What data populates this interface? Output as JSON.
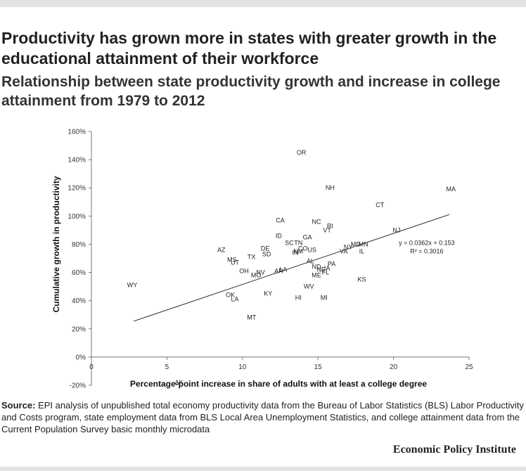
{
  "page": {
    "title": "Productivity has grown more in states with greater growth in the educational attainment of their workforce",
    "subtitle": "Relationship between state productivity growth and increase in college attainment from 1979 to 2012",
    "source_label": "Source:",
    "source_text": "EPI analysis of unpublished total economy productivity data from the Bureau of Labor Statistics (BLS) Labor Productivity and Costs program, state employment data from BLS Local Area Unemployment Statistics, and college attainment data from the Current Population Survey basic monthly microdata",
    "brand": "Economic Policy Institute"
  },
  "chart_data": {
    "type": "scatter",
    "title": "",
    "xlabel": "Percentage-point increase in share of adults with at least a college degree",
    "ylabel": "Cumulative growth in productivity",
    "xlim": [
      0,
      25
    ],
    "ylim": [
      -20,
      160
    ],
    "x_ticks": [
      0,
      5,
      10,
      15,
      20,
      25
    ],
    "x_tick_labels": [
      "0",
      "5",
      "10",
      "15",
      "20",
      "25"
    ],
    "y_ticks": [
      -20,
      0,
      20,
      40,
      60,
      80,
      100,
      120,
      140,
      160
    ],
    "y_tick_labels": [
      "-20%",
      "0%",
      "20%",
      "40%",
      "60%",
      "80%",
      "100%",
      "120%",
      "140%",
      "160%"
    ],
    "trendline": {
      "x_start": 2.8,
      "x_end": 23.7,
      "slope": 0.0362,
      "intercept": 0.153
    },
    "annotation": {
      "equation": "y = 0.0362x + 0.153",
      "r_squared": "R² = 0.3016",
      "x": 22.2,
      "y_equation": 81,
      "y_r2": 75
    },
    "points": [
      {
        "label": "OR",
        "x": 13.9,
        "y": 145
      },
      {
        "label": "MA",
        "x": 23.8,
        "y": 119
      },
      {
        "label": "NH",
        "x": 15.8,
        "y": 120
      },
      {
        "label": "CT",
        "x": 19.1,
        "y": 108
      },
      {
        "label": "CA",
        "x": 12.5,
        "y": 97
      },
      {
        "label": "NC",
        "x": 14.9,
        "y": 96
      },
      {
        "label": "RI",
        "x": 15.8,
        "y": 93
      },
      {
        "label": "VT",
        "x": 15.6,
        "y": 90
      },
      {
        "label": "NJ",
        "x": 20.2,
        "y": 90
      },
      {
        "label": "ID",
        "x": 12.4,
        "y": 86
      },
      {
        "label": "GA",
        "x": 14.3,
        "y": 85
      },
      {
        "label": "SC",
        "x": 13.1,
        "y": 81
      },
      {
        "label": "TN",
        "x": 13.7,
        "y": 81
      },
      {
        "label": "MD",
        "x": 17.5,
        "y": 80
      },
      {
        "label": "MN",
        "x": 18.0,
        "y": 80
      },
      {
        "label": "NY",
        "x": 17.0,
        "y": 78
      },
      {
        "label": "VA",
        "x": 16.7,
        "y": 75
      },
      {
        "label": "IL",
        "x": 17.9,
        "y": 75
      },
      {
        "label": "CO",
        "x": 14.0,
        "y": 77
      },
      {
        "label": "US",
        "x": 14.6,
        "y": 76
      },
      {
        "label": "IN",
        "x": 13.5,
        "y": 74
      },
      {
        "label": "NM",
        "x": 13.7,
        "y": 75
      },
      {
        "label": "AZ",
        "x": 8.6,
        "y": 76
      },
      {
        "label": "DE",
        "x": 11.5,
        "y": 77
      },
      {
        "label": "SD",
        "x": 11.6,
        "y": 73
      },
      {
        "label": "TX",
        "x": 10.6,
        "y": 71
      },
      {
        "label": "MS",
        "x": 9.3,
        "y": 69
      },
      {
        "label": "UT",
        "x": 9.5,
        "y": 67
      },
      {
        "label": "AL",
        "x": 14.5,
        "y": 68
      },
      {
        "label": "PA",
        "x": 15.9,
        "y": 66
      },
      {
        "label": "ND",
        "x": 14.9,
        "y": 64
      },
      {
        "label": "NE",
        "x": 15.2,
        "y": 62
      },
      {
        "label": "IA",
        "x": 15.6,
        "y": 63
      },
      {
        "label": "FL",
        "x": 15.5,
        "y": 60
      },
      {
        "label": "ME",
        "x": 14.9,
        "y": 58
      },
      {
        "label": "KS",
        "x": 17.9,
        "y": 55
      },
      {
        "label": "OH",
        "x": 10.1,
        "y": 61
      },
      {
        "label": "NV",
        "x": 11.2,
        "y": 60
      },
      {
        "label": "MO",
        "x": 10.9,
        "y": 58
      },
      {
        "label": "AR",
        "x": 12.4,
        "y": 61
      },
      {
        "label": "LA",
        "x": 12.7,
        "y": 62
      },
      {
        "label": "WY",
        "x": 2.7,
        "y": 51
      },
      {
        "label": "WV",
        "x": 14.4,
        "y": 50
      },
      {
        "label": "KY",
        "x": 11.7,
        "y": 45
      },
      {
        "label": "OK",
        "x": 9.2,
        "y": 44
      },
      {
        "label": "LA",
        "x": 9.5,
        "y": 41
      },
      {
        "label": "HI",
        "x": 13.7,
        "y": 42
      },
      {
        "label": "MI",
        "x": 15.4,
        "y": 42
      },
      {
        "label": "MT",
        "x": 10.6,
        "y": 28
      },
      {
        "label": "AK",
        "x": 5.8,
        "y": -18
      }
    ]
  }
}
